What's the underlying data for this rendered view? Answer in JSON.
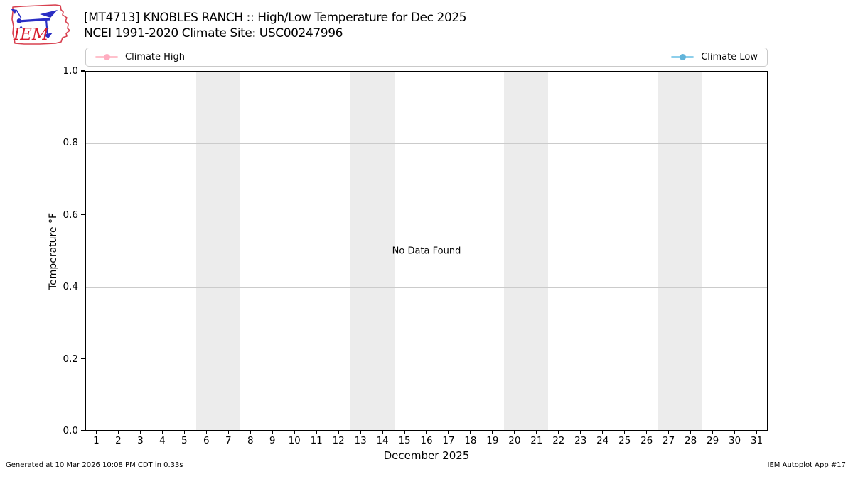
{
  "header": {
    "title_line1": "[MT4713] KNOBLES RANCH :: High/Low Temperature for Dec 2025",
    "title_line2": "NCEI 1991-2020 Climate Site: USC00247996",
    "logo_text": "IEM"
  },
  "legend": {
    "entries": [
      {
        "label": "Climate High",
        "line_color": "#ffc1cc",
        "marker_color": "#ffadc1"
      },
      {
        "label": "Climate Low",
        "line_color": "#8dcfeb",
        "marker_color": "#62b4da"
      }
    ]
  },
  "chart_data": {
    "type": "line",
    "title": "[MT4713] KNOBLES RANCH :: High/Low Temperature for Dec 2025",
    "subtitle": "NCEI 1991-2020 Climate Site: USC00247996",
    "xlabel": "December 2025",
    "ylabel": "Temperature °F",
    "no_data_text": "No Data Found",
    "series": [
      {
        "name": "Climate High",
        "color": "#ffc1cc",
        "x": [],
        "values": []
      },
      {
        "name": "Climate Low",
        "color": "#8dcfeb",
        "x": [],
        "values": []
      }
    ],
    "x_ticks": [
      1,
      2,
      3,
      4,
      5,
      6,
      7,
      8,
      9,
      10,
      11,
      12,
      13,
      14,
      15,
      16,
      17,
      18,
      19,
      20,
      21,
      22,
      23,
      24,
      25,
      26,
      27,
      28,
      29,
      30,
      31
    ],
    "y_ticks": [
      "0.0",
      "0.2",
      "0.4",
      "0.6",
      "0.8",
      "1.0"
    ],
    "xlim": [
      0.5,
      31.5
    ],
    "ylim": [
      0.0,
      1.0
    ],
    "grid": true,
    "grid_color": "#cbcbcb",
    "weekend_bands": [
      [
        5.5,
        7.5
      ],
      [
        12.5,
        14.5
      ],
      [
        19.5,
        21.5
      ],
      [
        26.5,
        28.5
      ]
    ],
    "band_color": "#ececec",
    "legend_position": "top"
  },
  "footer": {
    "left": "Generated at 10 Mar 2026 10:08 PM CDT in 0.33s",
    "right": "IEM Autoplot App #17"
  }
}
